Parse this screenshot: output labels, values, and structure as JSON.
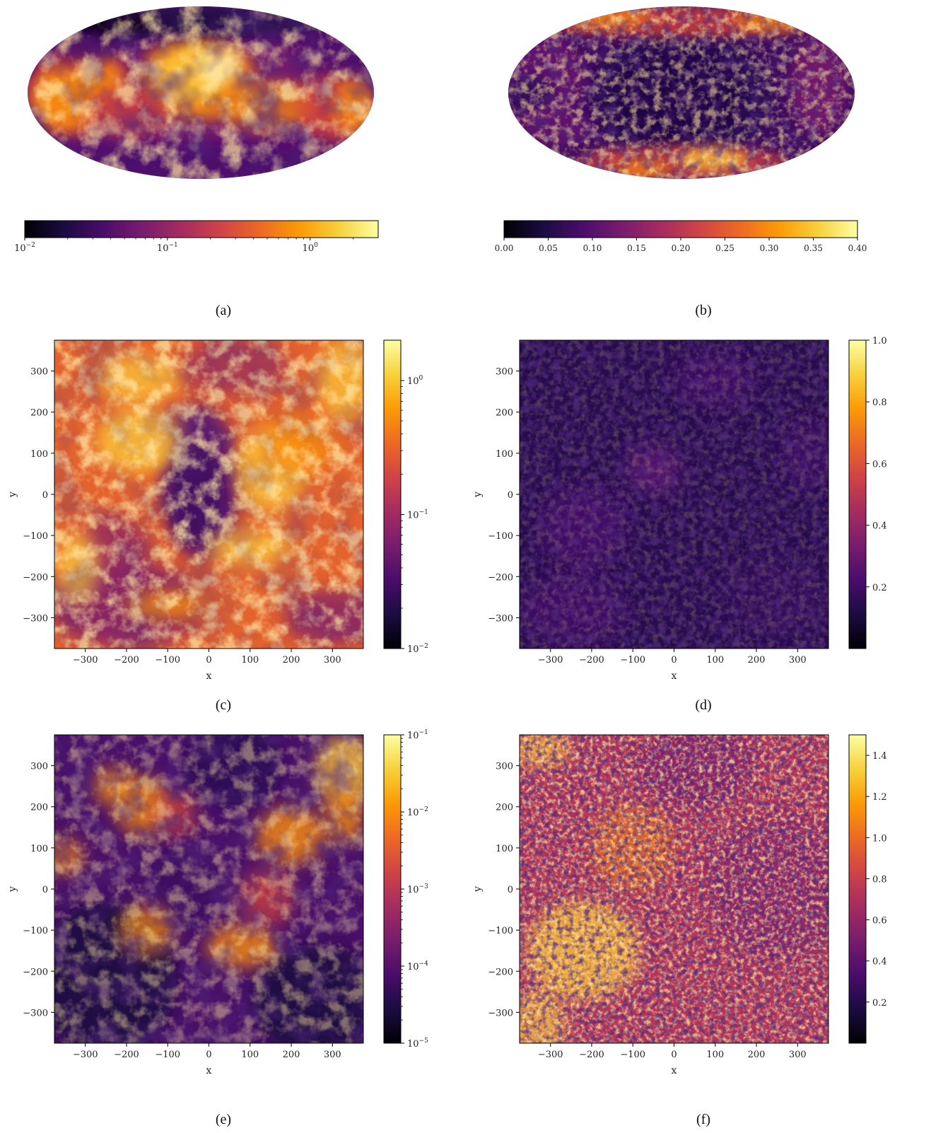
{
  "colors": {
    "inferno": [
      "#000004",
      "#1b0c41",
      "#4a0c6b",
      "#781c6d",
      "#a52c60",
      "#cf4446",
      "#ed6925",
      "#fb9b06",
      "#f7d13d",
      "#fcffa4"
    ]
  },
  "chart_data": [
    {
      "id": "a",
      "panel_label": "(a)",
      "type": "heatmap",
      "projection": "mollweide",
      "colorbar": {
        "orientation": "horizontal",
        "scale": "log",
        "range": [
          0.01,
          3
        ],
        "ticks": [
          {
            "value": 0.01,
            "base": "10",
            "exp": "−2"
          },
          {
            "value": 0.1,
            "base": "10",
            "exp": "−1"
          },
          {
            "value": 1,
            "base": "10",
            "exp": "0"
          }
        ]
      }
    },
    {
      "id": "b",
      "panel_label": "(b)",
      "type": "heatmap",
      "projection": "mollweide",
      "colorbar": {
        "orientation": "horizontal",
        "scale": "linear",
        "range": [
          0.0,
          0.4
        ],
        "ticks": [
          {
            "value": 0.0,
            "text": "0.00"
          },
          {
            "value": 0.05,
            "text": "0.05"
          },
          {
            "value": 0.1,
            "text": "0.10"
          },
          {
            "value": 0.15,
            "text": "0.15"
          },
          {
            "value": 0.2,
            "text": "0.20"
          },
          {
            "value": 0.25,
            "text": "0.25"
          },
          {
            "value": 0.3,
            "text": "0.30"
          },
          {
            "value": 0.35,
            "text": "0.35"
          },
          {
            "value": 0.4,
            "text": "0.40"
          }
        ]
      }
    },
    {
      "id": "c",
      "panel_label": "(c)",
      "type": "heatmap",
      "xlabel": "x",
      "ylabel": "y",
      "xlim": [
        -375,
        375
      ],
      "ylim": [
        -375,
        375
      ],
      "xticks": [
        -300,
        -200,
        -100,
        0,
        100,
        200,
        300
      ],
      "yticks": [
        -300,
        -200,
        -100,
        0,
        100,
        200,
        300
      ],
      "colorbar": {
        "orientation": "vertical",
        "scale": "log",
        "range": [
          0.01,
          2
        ],
        "ticks": [
          {
            "value": 0.01,
            "base": "10",
            "exp": "−2"
          },
          {
            "value": 0.1,
            "base": "10",
            "exp": "−1"
          },
          {
            "value": 1,
            "base": "10",
            "exp": "0"
          }
        ]
      }
    },
    {
      "id": "d",
      "panel_label": "(d)",
      "type": "heatmap",
      "xlabel": "x",
      "ylabel": "y",
      "xlim": [
        -375,
        375
      ],
      "ylim": [
        -375,
        375
      ],
      "xticks": [
        -300,
        -200,
        -100,
        0,
        100,
        200,
        300
      ],
      "yticks": [
        -300,
        -200,
        -100,
        0,
        100,
        200,
        300
      ],
      "colorbar": {
        "orientation": "vertical",
        "scale": "linear",
        "range": [
          0.0,
          1.0
        ],
        "ticks": [
          {
            "value": 0.2,
            "text": "0.2"
          },
          {
            "value": 0.4,
            "text": "0.4"
          },
          {
            "value": 0.6,
            "text": "0.6"
          },
          {
            "value": 0.8,
            "text": "0.8"
          },
          {
            "value": 1.0,
            "text": "1.0"
          }
        ]
      }
    },
    {
      "id": "e",
      "panel_label": "(e)",
      "type": "heatmap",
      "xlabel": "x",
      "ylabel": "y",
      "xlim": [
        -375,
        375
      ],
      "ylim": [
        -375,
        375
      ],
      "xticks": [
        -300,
        -200,
        -100,
        0,
        100,
        200,
        300
      ],
      "yticks": [
        -300,
        -200,
        -100,
        0,
        100,
        200,
        300
      ],
      "colorbar": {
        "orientation": "vertical",
        "scale": "log",
        "range": [
          1e-05,
          0.1
        ],
        "ticks": [
          {
            "value": 1e-05,
            "base": "10",
            "exp": "−5"
          },
          {
            "value": 0.0001,
            "base": "10",
            "exp": "−4"
          },
          {
            "value": 0.001,
            "base": "10",
            "exp": "−3"
          },
          {
            "value": 0.01,
            "base": "10",
            "exp": "−2"
          },
          {
            "value": 0.1,
            "base": "10",
            "exp": "−1"
          }
        ]
      }
    },
    {
      "id": "f",
      "panel_label": "(f)",
      "type": "heatmap",
      "xlabel": "x",
      "ylabel": "y",
      "xlim": [
        -375,
        375
      ],
      "ylim": [
        -375,
        375
      ],
      "xticks": [
        -300,
        -200,
        -100,
        0,
        100,
        200,
        300
      ],
      "yticks": [
        -300,
        -200,
        -100,
        0,
        100,
        200,
        300
      ],
      "colorbar": {
        "orientation": "vertical",
        "scale": "linear",
        "range": [
          0.0,
          1.5
        ],
        "ticks": [
          {
            "value": 0.2,
            "text": "0.2"
          },
          {
            "value": 0.4,
            "text": "0.4"
          },
          {
            "value": 0.6,
            "text": "0.6"
          },
          {
            "value": 0.8,
            "text": "0.8"
          },
          {
            "value": 1.0,
            "text": "1.0"
          },
          {
            "value": 1.2,
            "text": "1.2"
          },
          {
            "value": 1.4,
            "text": "1.4"
          }
        ]
      }
    }
  ]
}
